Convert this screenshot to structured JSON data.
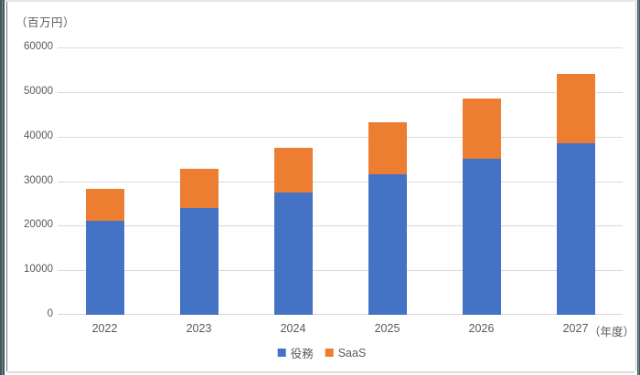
{
  "frame": {
    "edge_dark_color": "#41585F",
    "edge_light_color": "#E7E7E7",
    "background": "#FFFFFF"
  },
  "text_color": "#595959",
  "gridline_color": "#D9D9D9",
  "chart_data": {
    "type": "bar",
    "stacked": true,
    "unit_label": "（百万円）",
    "x_axis_label": "（年度）",
    "categories": [
      "2022",
      "2023",
      "2024",
      "2025",
      "2026",
      "2027"
    ],
    "series": [
      {
        "name": "役務",
        "color": "#4472C4",
        "values": [
          21000,
          23900,
          27500,
          31600,
          35000,
          38500
        ]
      },
      {
        "name": "SaaS",
        "color": "#ED7D31",
        "values": [
          7300,
          8800,
          10000,
          11700,
          13600,
          15500
        ]
      }
    ],
    "totals": [
      28300,
      32700,
      37500,
      43300,
      48600,
      54000
    ],
    "y_ticks": [
      0,
      10000,
      20000,
      30000,
      40000,
      50000,
      60000
    ],
    "ylim": [
      0,
      60000
    ],
    "grid": true,
    "legend_position": "bottom"
  }
}
